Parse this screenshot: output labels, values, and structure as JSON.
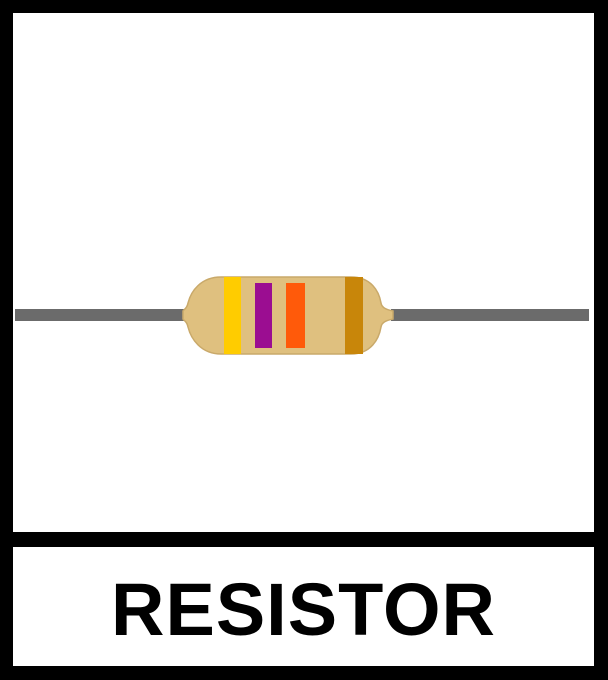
{
  "label": {
    "text": "RESISTOR"
  },
  "colors": {
    "frame": "#000000",
    "panel": "#ffffff",
    "lead_wire": "#6b6b6b",
    "resistor_body": "#dfc07f",
    "resistor_outline": "#c9a96a",
    "band_1": "#ffcc00",
    "band_2": "#9b0d91",
    "band_3": "#ff5a0a",
    "band_tolerance": "#c8860a"
  },
  "icons": {
    "component": "resistor-icon"
  }
}
